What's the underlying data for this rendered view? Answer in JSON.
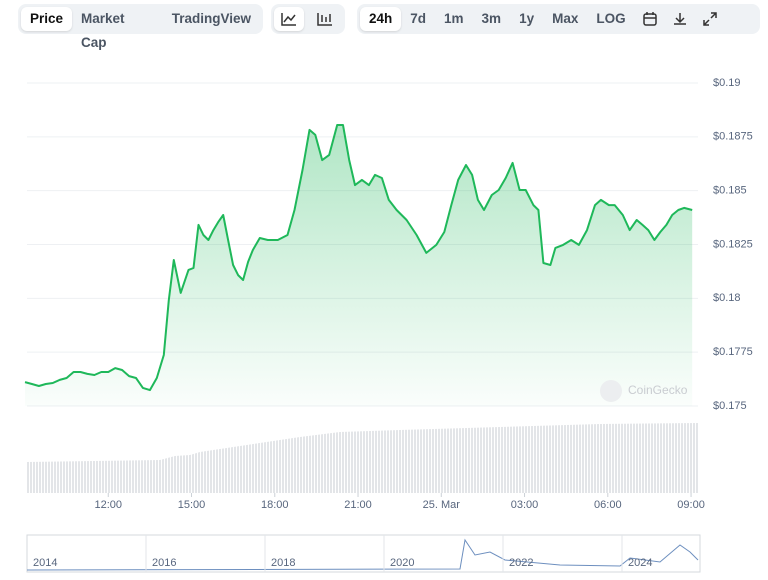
{
  "toolbar": {
    "tabs": [
      "Price",
      "Market Cap",
      "TradingView"
    ],
    "ranges": [
      "24h",
      "7d",
      "1m",
      "3m",
      "1y",
      "Max",
      "LOG"
    ]
  },
  "watermark": "CoinGecko",
  "navigator": {
    "years": [
      "2014",
      "2016",
      "2018",
      "2020",
      "2022",
      "2024"
    ]
  },
  "chart_data": {
    "type": "line",
    "x": [
      9.0,
      9.25,
      9.5,
      9.75,
      10.0,
      10.25,
      10.5,
      10.75,
      11.0,
      11.25,
      11.5,
      11.75,
      12.0,
      12.25,
      12.5,
      12.75,
      13.0,
      13.25,
      13.5,
      13.75,
      14.0,
      14.18,
      14.36,
      14.61,
      14.89,
      15.07,
      15.25,
      15.43,
      15.61,
      15.79,
      15.96,
      16.14,
      16.32,
      16.5,
      16.68,
      16.86,
      17.04,
      17.21,
      17.46,
      17.75,
      18.11,
      18.46,
      18.71,
      19.0,
      19.25,
      19.46,
      19.71,
      19.96,
      20.25,
      20.46,
      20.68,
      20.89,
      21.14,
      21.39,
      21.61,
      21.86,
      22.11,
      22.39,
      22.75,
      23.11,
      23.46,
      23.82,
      24.11,
      24.36,
      24.61,
      24.89,
      25.11,
      25.32,
      25.54,
      25.82,
      26.07,
      26.32,
      26.57,
      26.82,
      27.04,
      27.32,
      27.5,
      27.68,
      27.93,
      28.11,
      28.39,
      28.68,
      28.96,
      29.25,
      29.54,
      29.75,
      30.04,
      30.25,
      30.54,
      30.79,
      31.04,
      31.25,
      31.46,
      31.68,
      31.89,
      32.11,
      32.32,
      32.54,
      32.75,
      33.04
    ],
    "series": [
      {
        "color": "#1fb85a",
        "values": [
          0.17611,
          0.17602,
          0.17593,
          0.17602,
          0.17607,
          0.17621,
          0.1763,
          0.17658,
          0.17658,
          0.17649,
          0.17644,
          0.17658,
          0.17658,
          0.17676,
          0.17667,
          0.17639,
          0.1763,
          0.17584,
          0.17574,
          0.1763,
          0.17737,
          0.17992,
          0.18178,
          0.18025,
          0.18132,
          0.18141,
          0.18341,
          0.18294,
          0.18271,
          0.18317,
          0.18354,
          0.18387,
          0.18271,
          0.18155,
          0.18108,
          0.18085,
          0.18169,
          0.18224,
          0.1828,
          0.18271,
          0.18271,
          0.18294,
          0.1841,
          0.18596,
          0.18782,
          0.18759,
          0.18642,
          0.18666,
          0.18805,
          0.18805,
          0.18642,
          0.18526,
          0.1855,
          0.18526,
          0.18573,
          0.18559,
          0.18457,
          0.1841,
          0.18364,
          0.18294,
          0.18211,
          0.18248,
          0.18308,
          0.18433,
          0.1855,
          0.18619,
          0.18573,
          0.18457,
          0.1841,
          0.1848,
          0.18503,
          0.18559,
          0.18629,
          0.18503,
          0.18503,
          0.18433,
          0.1841,
          0.18164,
          0.18155,
          0.18234,
          0.18248,
          0.18271,
          0.18248,
          0.18317,
          0.18433,
          0.18457,
          0.18433,
          0.18433,
          0.18387,
          0.18317,
          0.18364,
          0.18341,
          0.18317,
          0.18271,
          0.18308,
          0.18341,
          0.18387,
          0.1841,
          0.1842,
          0.1841
        ]
      }
    ],
    "xlim": [
      9,
      33.25
    ],
    "xticks": [
      {
        "value": 12,
        "label": "12:00"
      },
      {
        "value": 15,
        "label": "15:00"
      },
      {
        "value": 18,
        "label": "18:00"
      },
      {
        "value": 21,
        "label": "21:00"
      },
      {
        "value": 24,
        "label": "25. Mar"
      },
      {
        "value": 27,
        "label": "03:00"
      },
      {
        "value": 30,
        "label": "06:00"
      },
      {
        "value": 33,
        "label": "09:00"
      }
    ],
    "ylim": [
      0.175,
      0.19
    ],
    "yticks": [
      {
        "value": 0.175,
        "label": "$0.175"
      },
      {
        "value": 0.1775,
        "label": "$0.1775"
      },
      {
        "value": 0.18,
        "label": "$0.18"
      },
      {
        "value": 0.1825,
        "label": "$0.1825"
      },
      {
        "value": 0.185,
        "label": "$0.185"
      },
      {
        "value": 0.1875,
        "label": "$0.1875"
      },
      {
        "value": 0.19,
        "label": "$0.19"
      }
    ],
    "grid": true
  }
}
